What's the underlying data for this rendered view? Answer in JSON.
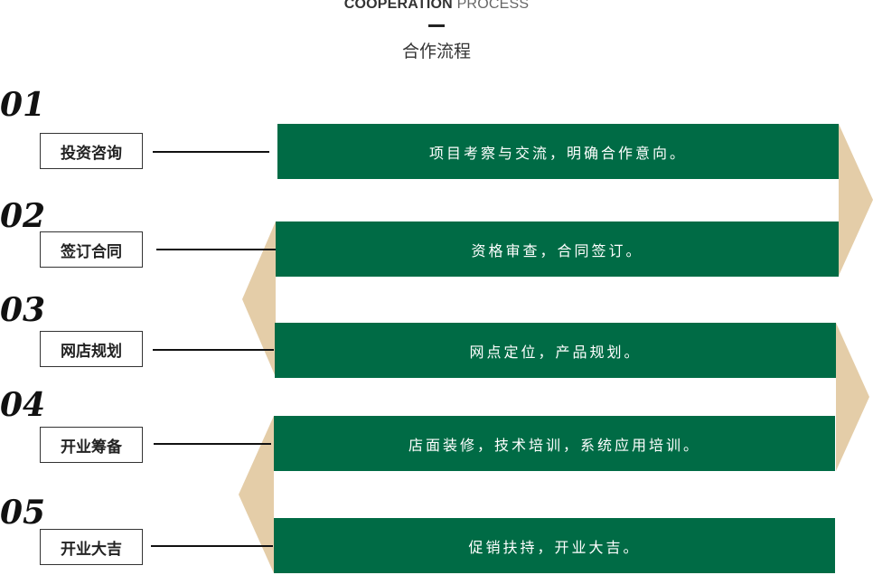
{
  "header": {
    "title_en_bold": "COOPERATION",
    "title_en_light": "PROCESS",
    "title_cn": "合作流程"
  },
  "colors": {
    "bar_green": "#006b45",
    "connector_tan": "#e4cda8",
    "text_dark": "#222222"
  },
  "steps": [
    {
      "number": "01",
      "label": "投资咨询",
      "description": "项目考察与交流，明确合作意向。"
    },
    {
      "number": "02",
      "label": "签订合同",
      "description": "资格审查，合同签订。"
    },
    {
      "number": "03",
      "label": "网店规划",
      "description": "网点定位，产品规划。"
    },
    {
      "number": "04",
      "label": "开业筹备",
      "description": "店面装修，技术培训，系统应用培训。"
    },
    {
      "number": "05",
      "label": "开业大吉",
      "description": "促销扶持，开业大吉。"
    }
  ]
}
